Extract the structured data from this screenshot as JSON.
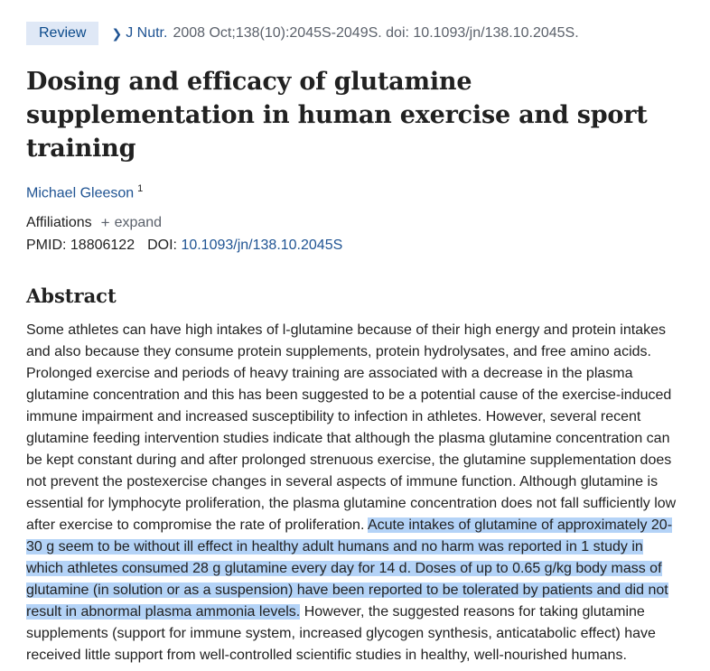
{
  "header": {
    "badge": "Review",
    "journal": "J Nutr.",
    "citation": "2008 Oct;138(10):2045S-2049S. doi: 10.1093/jn/138.10.2045S."
  },
  "article": {
    "title": "Dosing and efficacy of glutamine supplementation in human exercise and sport training",
    "author": "Michael Gleeson",
    "author_sup": "1",
    "affiliations_label": "Affiliations",
    "expand_label": "expand",
    "pmid_label": "PMID:",
    "pmid": "18806122",
    "doi_label": "DOI:",
    "doi": "10.1093/jn/138.10.2045S"
  },
  "abstract": {
    "heading": "Abstract",
    "part1": "Some athletes can have high intakes of l-glutamine because of their high energy and protein intakes and also because they consume protein supplements, protein hydrolysates, and free amino acids. Prolonged exercise and periods of heavy training are associated with a decrease in the plasma glutamine concentration and this has been suggested to be a potential cause of the exercise-induced immune impairment and increased susceptibility to infection in athletes. However, several recent glutamine feeding intervention studies indicate that although the plasma glutamine concentration can be kept constant during and after prolonged strenuous exercise, the glutamine supplementation does not prevent the postexercise changes in several aspects of immune function. Although glutamine is essential for lymphocyte proliferation, the plasma glutamine concentration does not fall sufficiently low after exercise to compromise the rate of proliferation.",
    "highlighted": "Acute intakes of glutamine of approximately 20-30 g seem to be without ill effect in healthy adult humans and no harm was reported in 1 study in which athletes consumed 28 g glutamine every day for 14 d. Doses of up to 0.65 g/kg body mass of glutamine (in solution or as a suspension) have been reported to be tolerated by patients and did not result in abnormal plasma ammonia levels.",
    "part2": "However, the suggested reasons for taking glutamine supplements (support for immune system, increased glycogen synthesis, anticatabolic effect) have received little support from well-controlled scientific studies in healthy, well-nourished humans."
  },
  "colors": {
    "link": "#205493",
    "badge_bg": "#dfe8f6",
    "highlight": "#b4d3f7"
  },
  "icons": {
    "chevron": "chevron-right-icon",
    "expand": "plus-icon"
  }
}
